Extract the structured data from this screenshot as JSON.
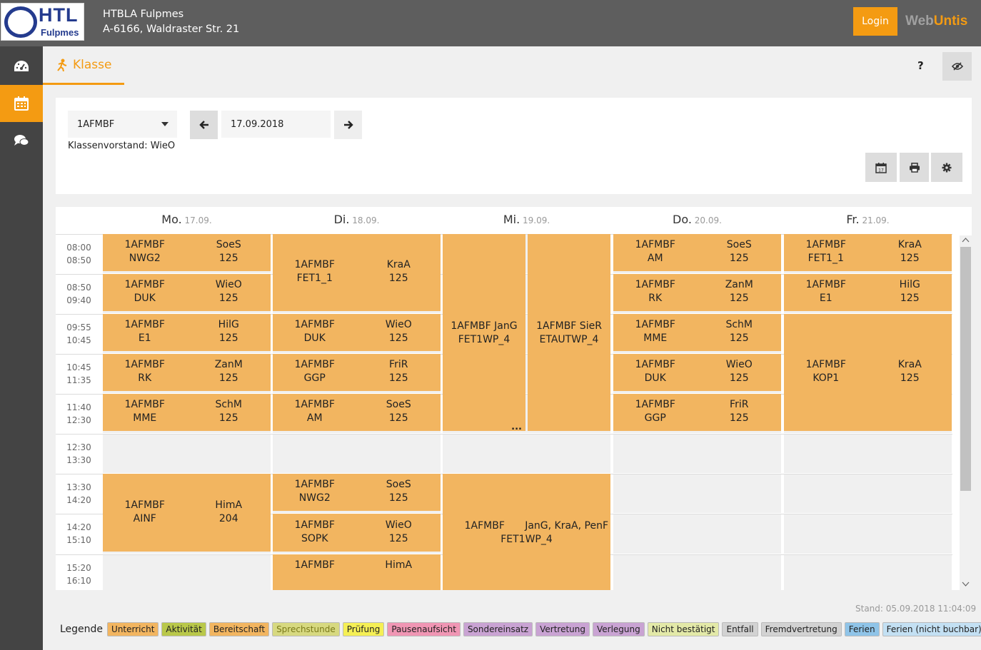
{
  "header": {
    "logo_text": "HTL",
    "logo_sub": "Fulpmes",
    "school_name": "HTBLA Fulpmes",
    "school_address": "A-6166, Waldraster Str. 21",
    "login_label": "Login",
    "brand_web": "Web",
    "brand_untis": "Untis"
  },
  "sidebar": {
    "items": [
      {
        "icon": "dashboard-icon",
        "active": false
      },
      {
        "icon": "calendar-icon",
        "active": true
      },
      {
        "icon": "chat-icon",
        "active": false
      }
    ]
  },
  "tabbar": {
    "tab_label": "Klasse",
    "help_label": "?"
  },
  "controls": {
    "class_select_value": "1AFMBF",
    "date_value": "17.09.2018",
    "klassenvorstand": "Klassenvorstand: WieO"
  },
  "timetable": {
    "days": [
      {
        "name": "Mo.",
        "date": "17.09."
      },
      {
        "name": "Di.",
        "date": "18.09."
      },
      {
        "name": "Mi.",
        "date": "19.09."
      },
      {
        "name": "Do.",
        "date": "20.09."
      },
      {
        "name": "Fr.",
        "date": "21.09."
      }
    ],
    "periods": [
      {
        "start": "08:00",
        "end": "08:50"
      },
      {
        "start": "08:50",
        "end": "09:40"
      },
      {
        "start": "09:55",
        "end": "10:45"
      },
      {
        "start": "10:45",
        "end": "11:35"
      },
      {
        "start": "11:40",
        "end": "12:30"
      },
      {
        "start": "12:30",
        "end": "13:30"
      },
      {
        "start": "13:30",
        "end": "14:20"
      },
      {
        "start": "14:20",
        "end": "15:10"
      },
      {
        "start": "15:20",
        "end": "16:10"
      }
    ],
    "lessons": [
      {
        "day": 0,
        "start": 0,
        "span": 1,
        "klasse": "1AFMBF",
        "teacher": "SoeS",
        "subject": "NWG2",
        "room": "125"
      },
      {
        "day": 0,
        "start": 1,
        "span": 1,
        "klasse": "1AFMBF",
        "teacher": "WieO",
        "subject": "DUK",
        "room": "125"
      },
      {
        "day": 0,
        "start": 2,
        "span": 1,
        "klasse": "1AFMBF",
        "teacher": "HilG",
        "subject": "E1",
        "room": "125"
      },
      {
        "day": 0,
        "start": 3,
        "span": 1,
        "klasse": "1AFMBF",
        "teacher": "ZanM",
        "subject": "RK",
        "room": "125"
      },
      {
        "day": 0,
        "start": 4,
        "span": 1,
        "klasse": "1AFMBF",
        "teacher": "SchM",
        "subject": "MME",
        "room": "125"
      },
      {
        "day": 0,
        "start": 6,
        "span": 2,
        "klasse": "1AFMBF",
        "teacher": "HimA",
        "subject": "AINF",
        "room": "204"
      },
      {
        "day": 1,
        "start": 0,
        "span": 2,
        "klasse": "1AFMBF",
        "teacher": "KraA",
        "subject": "FET1_1",
        "room": "125"
      },
      {
        "day": 1,
        "start": 2,
        "span": 1,
        "klasse": "1AFMBF",
        "teacher": "WieO",
        "subject": "DUK",
        "room": "125"
      },
      {
        "day": 1,
        "start": 3,
        "span": 1,
        "klasse": "1AFMBF",
        "teacher": "FriR",
        "subject": "GGP",
        "room": "125"
      },
      {
        "day": 1,
        "start": 4,
        "span": 1,
        "klasse": "1AFMBF",
        "teacher": "SoeS",
        "subject": "AM",
        "room": "125"
      },
      {
        "day": 1,
        "start": 6,
        "span": 1,
        "klasse": "1AFMBF",
        "teacher": "SoeS",
        "subject": "NWG2",
        "room": "125"
      },
      {
        "day": 1,
        "start": 7,
        "span": 1,
        "klasse": "1AFMBF",
        "teacher": "WieO",
        "subject": "SOPK",
        "room": "125"
      },
      {
        "day": 1,
        "start": 8,
        "span": 2,
        "klasse": "1AFMBF",
        "teacher": "HimA",
        "subject": "",
        "room": ""
      },
      {
        "day": 3,
        "start": 0,
        "span": 1,
        "klasse": "1AFMBF",
        "teacher": "SoeS",
        "subject": "AM",
        "room": "125"
      },
      {
        "day": 3,
        "start": 1,
        "span": 1,
        "klasse": "1AFMBF",
        "teacher": "ZanM",
        "subject": "RK",
        "room": "125"
      },
      {
        "day": 3,
        "start": 2,
        "span": 1,
        "klasse": "1AFMBF",
        "teacher": "SchM",
        "subject": "MME",
        "room": "125"
      },
      {
        "day": 3,
        "start": 3,
        "span": 1,
        "klasse": "1AFMBF",
        "teacher": "WieO",
        "subject": "DUK",
        "room": "125"
      },
      {
        "day": 3,
        "start": 4,
        "span": 1,
        "klasse": "1AFMBF",
        "teacher": "FriR",
        "subject": "GGP",
        "room": "125"
      },
      {
        "day": 4,
        "start": 0,
        "span": 1,
        "klasse": "1AFMBF",
        "teacher": "KraA",
        "subject": "FET1_1",
        "room": "125"
      },
      {
        "day": 4,
        "start": 1,
        "span": 1,
        "klasse": "1AFMBF",
        "teacher": "HilG",
        "subject": "E1",
        "room": "125"
      },
      {
        "day": 4,
        "start": 2,
        "span": 3,
        "klasse": "1AFMBF",
        "teacher": "KraA",
        "subject": "KOP1",
        "room": "125"
      }
    ],
    "wednesday_split": [
      {
        "klasse": "1AFMBF",
        "teacher": "JanG",
        "subject": "FET1WP_4"
      },
      {
        "klasse": "1AFMBF",
        "teacher": "SieR",
        "subject": "ETAUTWP_4"
      }
    ],
    "wednesday_afternoon": {
      "klasse": "1AFMBF",
      "teacher": "JanG, KraA, PenF",
      "subject": "FET1WP_4"
    },
    "overflow_marker": "..."
  },
  "stand": "Stand: 05.09.2018 11:04:09",
  "legend": {
    "title": "Legende",
    "items": [
      {
        "label": "Unterricht",
        "color": "#f2b560",
        "text": "#222"
      },
      {
        "label": "Aktivität",
        "color": "#b9c84a",
        "text": "#222"
      },
      {
        "label": "Bereitschaft",
        "color": "#f2b560",
        "text": "#222"
      },
      {
        "label": "Sprechstunde",
        "color": "#d7d980",
        "text": "#7a7a1a"
      },
      {
        "label": "Prüfung",
        "color": "#f5ef55",
        "text": "#222"
      },
      {
        "label": "Pausenaufsicht",
        "color": "#f096b4",
        "text": "#222"
      },
      {
        "label": "Sondereinsatz",
        "color": "#c9a3d3",
        "text": "#222"
      },
      {
        "label": "Vertretung",
        "color": "#c9a3d3",
        "text": "#222"
      },
      {
        "label": "Verlegung",
        "color": "#c9a3d3",
        "text": "#222"
      },
      {
        "label": "Nicht bestätigt",
        "color": "#e3e9a8",
        "text": "#222"
      },
      {
        "label": "Entfall",
        "color": "#d2d2d2",
        "text": "#222"
      },
      {
        "label": "Fremdvertretung",
        "color": "#d2d2d2",
        "text": "#222"
      },
      {
        "label": "Ferien",
        "color": "#8fc4e8",
        "text": "#222"
      },
      {
        "label": "Ferien (nicht buchbar)",
        "color": "#c3e0f3",
        "text": "#222"
      }
    ]
  },
  "colors": {
    "accent": "#f49b12",
    "lesson": "#f2b560",
    "topbar": "#5e5e5e",
    "sidebar": "#444444"
  }
}
